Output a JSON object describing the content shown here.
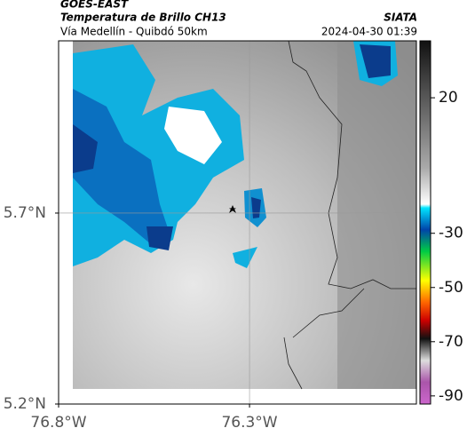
{
  "header": {
    "product": "GOES-EAST",
    "title": "Temperatura de Brillo CH13",
    "subtitle": "Vía Medellín - Quibdó 50km",
    "source": "SIATA",
    "datetime": "2024-04-30 01:39"
  },
  "map": {
    "xlim": [
      -76.8,
      -75.863
    ],
    "ylim": [
      5.2,
      6.151
    ],
    "xticks": [
      {
        "value": -76.8,
        "label": "76.8°W"
      },
      {
        "value": -76.3,
        "label": "76.3°W"
      }
    ],
    "yticks": [
      {
        "value": 5.7,
        "label": "5.7°N"
      },
      {
        "value": 5.2,
        "label": "5.2°N"
      }
    ],
    "grid": true
  },
  "colorbar": {
    "lim": [
      -93,
      41
    ],
    "ticks": [
      20,
      -30,
      -50,
      -70,
      -90
    ]
  }
}
